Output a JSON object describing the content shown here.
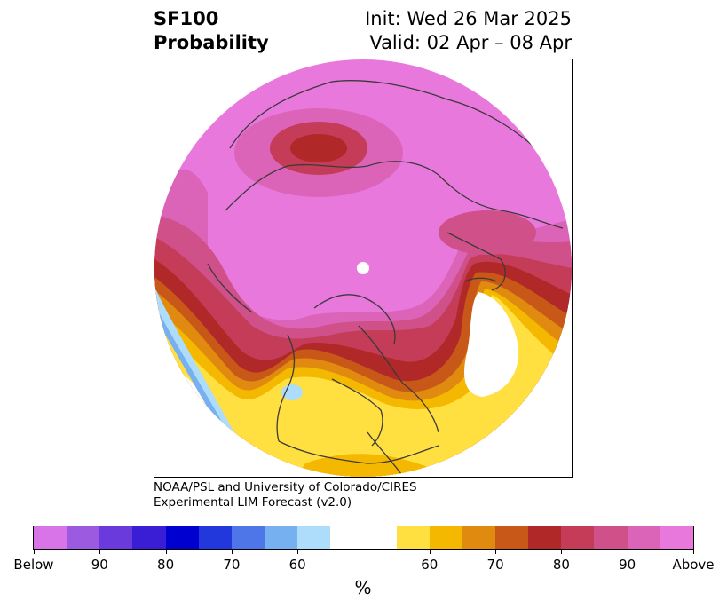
{
  "header": {
    "title_line1": "SF100",
    "title_line2": "Probability",
    "init_text": "Init: Wed 26 Mar 2025",
    "valid_text": "Valid: 02 Apr – 08 Apr"
  },
  "credit": {
    "line1": "NOAA/PSL and University of Colorado/CIRES",
    "line2": "Experimental LIM Forecast (v2.0)"
  },
  "colorbar": {
    "unit_label": "%",
    "colors": [
      "#d874e8",
      "#9b5ae0",
      "#6a3adc",
      "#3a1ed6",
      "#0000d0",
      "#2238dc",
      "#4e76e8",
      "#76b0f0",
      "#aeddfb",
      "#ffffff",
      "#ffffff",
      "#ffe040",
      "#f5b800",
      "#e08a10",
      "#c85818",
      "#b02828",
      "#c43c58",
      "#d0508a",
      "#dc64b8",
      "#e878dc"
    ],
    "ticks": [
      "Below",
      "90",
      "80",
      "70",
      "60",
      "60",
      "70",
      "80",
      "90",
      "Above"
    ]
  },
  "map_colors": {
    "above_90": "#e878dc",
    "above_85": "#dc64b8",
    "above_80": "#d0508a",
    "above_75": "#c43c58",
    "above_70": "#b02828",
    "above_65": "#c85818",
    "above_60": "#e08a10",
    "above_55": "#f5b800",
    "above_50": "#ffe040",
    "below_55": "#aeddfb",
    "below_60": "#76b0f0",
    "coast": "#3a3a3a"
  }
}
